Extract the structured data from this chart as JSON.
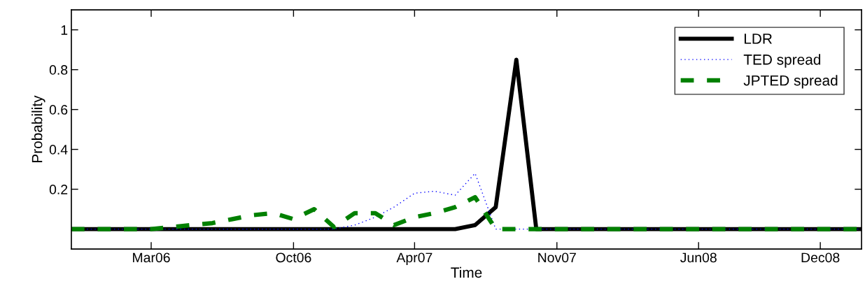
{
  "chart_data": {
    "type": "line",
    "xlabel": "Time",
    "ylabel": "Probability",
    "x": [
      "2005-11",
      "2005-12",
      "2006-01",
      "2006-02",
      "2006-03",
      "2006-04",
      "2006-05",
      "2006-06",
      "2006-07",
      "2006-08",
      "2006-09",
      "2006-10",
      "2006-11",
      "2006-12",
      "2007-01",
      "2007-02",
      "2007-03",
      "2007-04",
      "2007-05",
      "2007-06",
      "2007-07",
      "2007-08",
      "2007-09",
      "2007-10",
      "2007-11",
      "2007-12",
      "2008-01",
      "2008-02",
      "2008-03",
      "2008-04",
      "2008-05",
      "2008-06",
      "2008-07",
      "2008-08",
      "2008-09",
      "2008-10",
      "2008-11",
      "2008-12",
      "2009-01",
      "2009-02"
    ],
    "series": [
      {
        "name": "LDR",
        "color": "#000000",
        "line_style": "solid",
        "values": [
          0,
          0,
          0,
          0,
          0,
          0,
          0,
          0,
          0,
          0,
          0,
          0,
          0,
          0,
          0,
          0,
          0,
          0,
          0,
          0,
          0.02,
          0.11,
          0.85,
          0,
          0,
          0,
          0,
          0,
          0,
          0,
          0,
          0,
          0,
          0,
          0,
          0,
          0,
          0,
          0,
          0
        ]
      },
      {
        "name": "TED spread",
        "color": "#0000ff",
        "line_style": "dotted",
        "values": [
          0,
          0,
          0,
          0,
          0,
          0,
          0,
          0,
          0,
          0,
          0,
          0,
          0,
          0,
          0.02,
          0.06,
          0.11,
          0.18,
          0.19,
          0.17,
          0.28,
          0,
          0,
          0,
          0,
          0,
          0,
          0,
          0,
          0,
          0,
          0,
          0,
          0,
          0,
          0,
          0,
          0,
          0,
          0
        ]
      },
      {
        "name": "JPTED spread",
        "color": "#008000",
        "line_style": "dashed",
        "values": [
          0,
          0,
          0,
          0,
          0,
          0.01,
          0.02,
          0.03,
          0.05,
          0.07,
          0.08,
          0.05,
          0.1,
          0.01,
          0.08,
          0.08,
          0.02,
          0.06,
          0.08,
          0.11,
          0.16,
          0,
          0,
          0,
          0,
          0,
          0,
          0,
          0,
          0,
          0,
          0,
          0,
          0,
          0,
          0,
          0,
          0,
          0,
          0
        ]
      }
    ],
    "xlim": [
      "2005-11",
      "2009-02"
    ],
    "xticks": [
      {
        "value": "2006-03-01",
        "label": "Mar06"
      },
      {
        "value": "2006-10-01",
        "label": "Oct06"
      },
      {
        "value": "2007-04-01",
        "label": "Apr07"
      },
      {
        "value": "2007-11-01",
        "label": "Nov07"
      },
      {
        "value": "2008-06-01",
        "label": "Jun08"
      },
      {
        "value": "2008-12-01",
        "label": "Dec08"
      }
    ],
    "ylim": [
      -0.1,
      1.1
    ],
    "yticks": [
      0.2,
      0.4,
      0.6,
      0.8,
      {
        "value": 1,
        "label": "1"
      }
    ],
    "grid": false,
    "legend": "top right",
    "marker": "none"
  }
}
